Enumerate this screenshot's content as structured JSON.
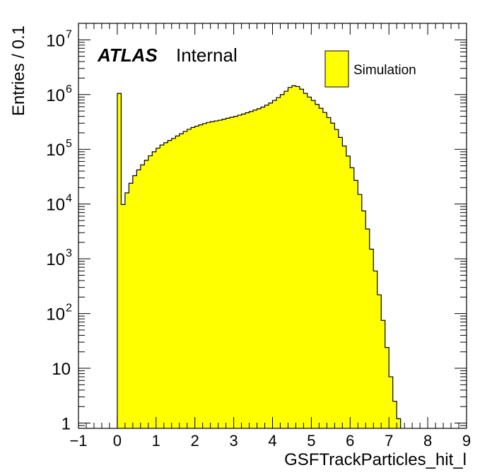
{
  "colors": {
    "fill": "#ffff00",
    "line": "#000000",
    "background": "#ffffff"
  },
  "header": {
    "brand": "ATLAS",
    "status": "Internal"
  },
  "legend": {
    "entry": "Simulation",
    "position": "top-right"
  },
  "chart_data": {
    "type": "bar",
    "xlabel": "GSFTrackParticles_hit_l",
    "ylabel": "Entries / 0.1",
    "xlim": [
      -1,
      9
    ],
    "ylim": [
      0.8,
      20000000
    ],
    "y_scale": "log",
    "bin_width": 0.1,
    "grid": false,
    "x_ticks": [
      "−1",
      "0",
      "1",
      "2",
      "3",
      "4",
      "5",
      "6",
      "7",
      "8",
      "9"
    ],
    "y_ticks": [
      {
        "value": 1,
        "base": "1",
        "exp": ""
      },
      {
        "value": 10,
        "base": "10",
        "exp": ""
      },
      {
        "value": 100,
        "base": "10",
        "exp": "2"
      },
      {
        "value": 1000,
        "base": "10",
        "exp": "3"
      },
      {
        "value": 10000,
        "base": "10",
        "exp": "4"
      },
      {
        "value": 100000,
        "base": "10",
        "exp": "5"
      },
      {
        "value": 1000000,
        "base": "10",
        "exp": "6"
      },
      {
        "value": 10000000,
        "base": "10",
        "exp": "7"
      }
    ],
    "bins": {
      "start": 0.0,
      "values": [
        1050000,
        9800,
        16000,
        24000,
        33000,
        42000,
        52000,
        63000,
        76000,
        90000,
        105000,
        120000,
        132000,
        145000,
        158000,
        175000,
        192000,
        212000,
        232000,
        250000,
        265000,
        280000,
        295000,
        310000,
        320000,
        330000,
        340000,
        355000,
        370000,
        385000,
        400000,
        420000,
        440000,
        465000,
        490000,
        520000,
        550000,
        590000,
        640000,
        700000,
        780000,
        880000,
        1000000,
        1150000,
        1350000,
        1450000,
        1400000,
        1250000,
        1050000,
        900000,
        780000,
        660000,
        560000,
        470000,
        380000,
        300000,
        230000,
        165000,
        115000,
        75000,
        46000,
        27000,
        15000,
        7500,
        3500,
        1500,
        600,
        220,
        75,
        24,
        7,
        2.5,
        1.2
      ]
    }
  }
}
